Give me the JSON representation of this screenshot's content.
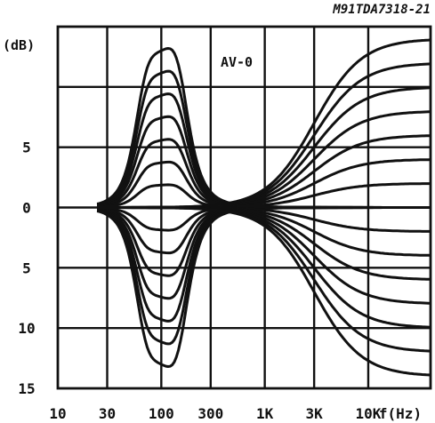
{
  "chart_data": {
    "type": "line",
    "title": "",
    "reference": "M91TDA7318-21",
    "annotation": "AV-0",
    "xlabel": "f(Hz)",
    "ylabel": "(dB)",
    "x_scale": "log",
    "xlim": [
      10,
      40000
    ],
    "ylim": [
      -15,
      15
    ],
    "grid": true,
    "x_ticks": [
      {
        "value": 10,
        "label": "10"
      },
      {
        "value": 30,
        "label": "30"
      },
      {
        "value": 100,
        "label": "100"
      },
      {
        "value": 300,
        "label": "300"
      },
      {
        "value": 1000,
        "label": "1K"
      },
      {
        "value": 3000,
        "label": "3K"
      },
      {
        "value": 10000,
        "label": "10K"
      }
    ],
    "y_tick_labels": [
      {
        "value": 5,
        "label": "5"
      },
      {
        "value": 0,
        "label": "0"
      },
      {
        "value": -5,
        "label": "5"
      },
      {
        "value": -10,
        "label": "10"
      },
      {
        "value": -15,
        "label": "15"
      }
    ],
    "bass_gains": [
      14,
      12,
      10,
      8,
      6,
      4,
      2,
      0,
      -2,
      -4,
      -6,
      -8,
      -10,
      -12,
      -14
    ],
    "treble_gains": [
      14,
      12,
      10,
      8,
      6,
      4,
      2,
      0,
      -2,
      -4,
      -6,
      -8,
      -10,
      -12,
      -14
    ],
    "bass_center_hz": 100,
    "treble_corner_hz": 3000,
    "mid_frequency_hz": 700,
    "curve_start_hz": 24,
    "colors": {
      "ink": "#111111",
      "background": "#ffffff"
    }
  }
}
